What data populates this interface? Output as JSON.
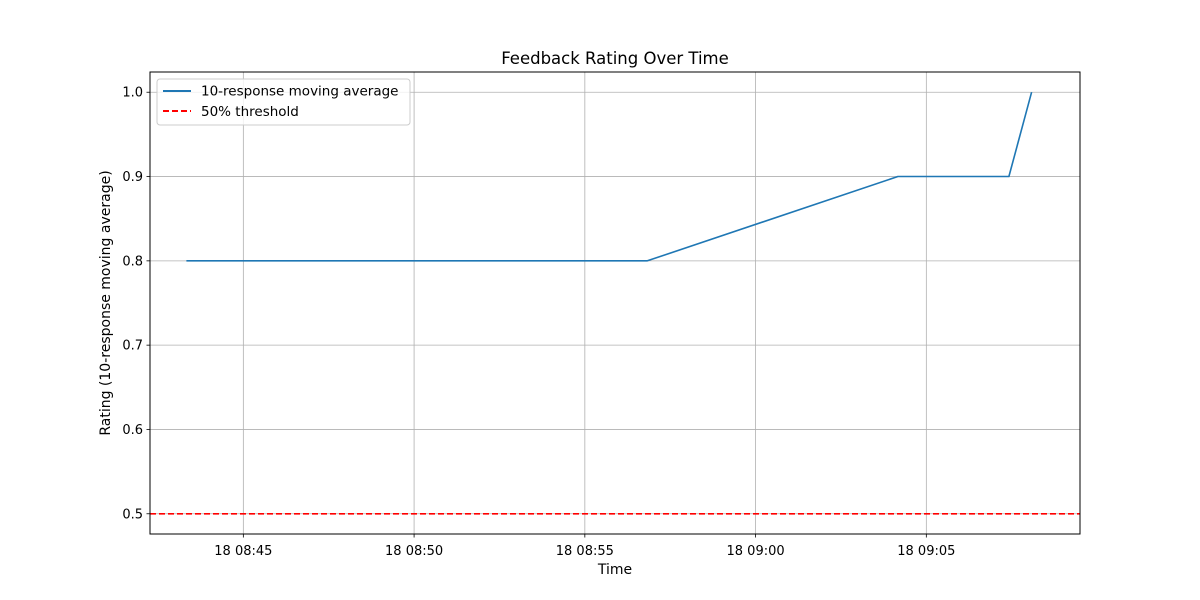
{
  "chart_data": {
    "type": "line",
    "title": "Feedback Rating Over Time",
    "xlabel": "Time",
    "ylabel": "Rating (10-response moving average)",
    "x_ticks": [
      "18 08:45",
      "18 08:50",
      "18 08:55",
      "18 09:00",
      "18 09:05"
    ],
    "x_tick_values": [
      "08:45",
      "08:50",
      "08:55",
      "09:00",
      "09:05"
    ],
    "y_ticks": [
      0.5,
      0.6,
      0.7,
      0.8,
      0.9,
      1.0
    ],
    "y_tick_labels": [
      "0.5",
      "0.6",
      "0.7",
      "0.8",
      "0.9",
      "1.0"
    ],
    "xlim": [
      "08:42:16",
      "09:09:30"
    ],
    "ylim": [
      0.476,
      1.024
    ],
    "grid": true,
    "legend_position": "top-left",
    "series": [
      {
        "name": "10-response moving average",
        "color": "#1f77b4",
        "style": "solid",
        "x": [
          "08:43:20",
          "08:56:50",
          "09:04:10",
          "09:07:25",
          "09:08:05"
        ],
        "values": [
          0.8,
          0.8,
          0.9,
          0.9,
          1.0
        ]
      }
    ],
    "reference_lines": [
      {
        "name": "50% threshold",
        "color": "#ff0000",
        "style": "dashed",
        "y": 0.5
      }
    ]
  }
}
